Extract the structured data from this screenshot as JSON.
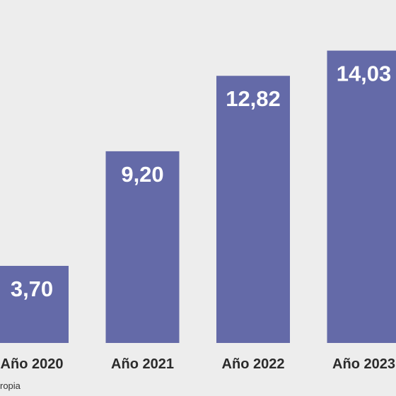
{
  "chart_data": {
    "type": "bar",
    "categories": [
      "Año 2020",
      "Año 2021",
      "Año 2022",
      "Año 2023"
    ],
    "values": [
      3.7,
      9.2,
      12.82,
      14.03
    ],
    "value_labels": [
      "3,70",
      "9,20",
      "12,82",
      "14,03"
    ],
    "ylim": [
      0,
      15
    ],
    "grid": false,
    "bar_color": "#646aa8",
    "label_color": "#ffffff"
  },
  "source_text": "ropia"
}
